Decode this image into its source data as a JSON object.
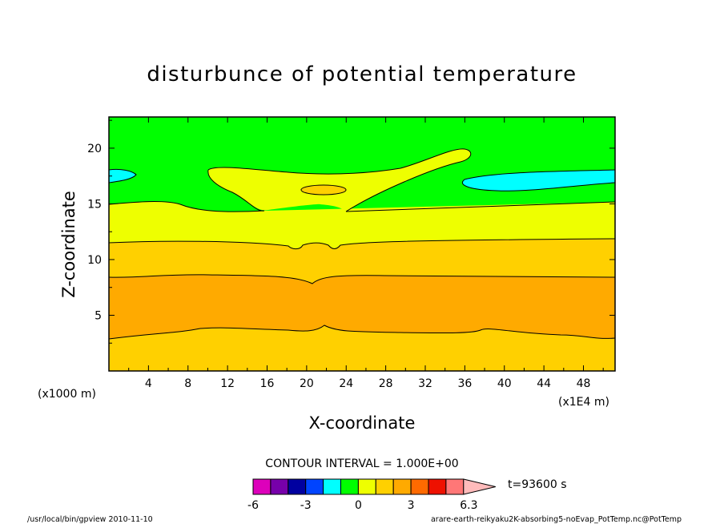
{
  "chart_data": {
    "type": "contour",
    "title": "disturbunce of potential temperature",
    "xlabel": "X-coordinate",
    "ylabel": "Z-coordinate",
    "x_unit": "(x1E4 m)",
    "y_unit": "(x1000 m)",
    "xlim": [
      0,
      51.2
    ],
    "ylim": [
      0,
      22.8
    ],
    "x_ticks": [
      4,
      8,
      12,
      16,
      20,
      24,
      28,
      32,
      36,
      40,
      44,
      48
    ],
    "y_ticks": [
      5,
      10,
      15,
      20
    ],
    "contour_interval": "CONTOUR INTERVAL = 1.000E+00",
    "time_label": "t=93600 s",
    "colorbar": {
      "colors": [
        "#dd00bb",
        "#7700aa",
        "#0000a0",
        "#0044ff",
        "#00ffff",
        "#00ff00",
        "#eeff00",
        "#ffd000",
        "#ffaa00",
        "#ff6a00",
        "#ee1100",
        "#ff7777",
        "#ffbbbb"
      ],
      "tick_values": [
        -6,
        -3,
        0,
        3,
        6.3
      ],
      "tick_labels": [
        "-6",
        "-3",
        "0",
        "3",
        "6.3"
      ]
    },
    "bands": [
      {
        "level": "1 to 2",
        "color": "#ffd000",
        "z_range": [
          0,
          3
        ]
      },
      {
        "level": "2 to 3",
        "color": "#ffaa00",
        "z_range": [
          3,
          8.5
        ]
      },
      {
        "level": "1 to 2",
        "color": "#ffd000",
        "z_range": [
          8.5,
          11.5
        ]
      },
      {
        "level": "0 to 1",
        "color": "#eeff00",
        "z_range": [
          11.5,
          15
        ]
      },
      {
        "level": "-1 to 0",
        "color": "#00ff00",
        "z_range": [
          15,
          22.8
        ]
      }
    ],
    "features": [
      {
        "name": "cold pocket left",
        "color": "#00ffff",
        "x_range": [
          0,
          2.5
        ],
        "z_range": [
          17,
          18.2
        ]
      },
      {
        "name": "cold pocket right",
        "color": "#00ffff",
        "x_range": [
          35.5,
          51.2
        ],
        "z_range": [
          16.5,
          18.2
        ]
      },
      {
        "name": "warm plume",
        "color": "#eeff00",
        "x_range": [
          10,
          37
        ],
        "z_range": [
          14.5,
          20
        ]
      },
      {
        "name": "warm core",
        "color": "#ffd000",
        "x_range": [
          19.5,
          24
        ],
        "z_range": [
          16.2,
          16.8
        ]
      }
    ]
  },
  "footer": {
    "left": "/usr/local/bin/gpview  2010-11-10",
    "right": "arare-earth-reikyaku2K-absorbing5-noEvap_PotTemp.nc@PotTemp"
  }
}
